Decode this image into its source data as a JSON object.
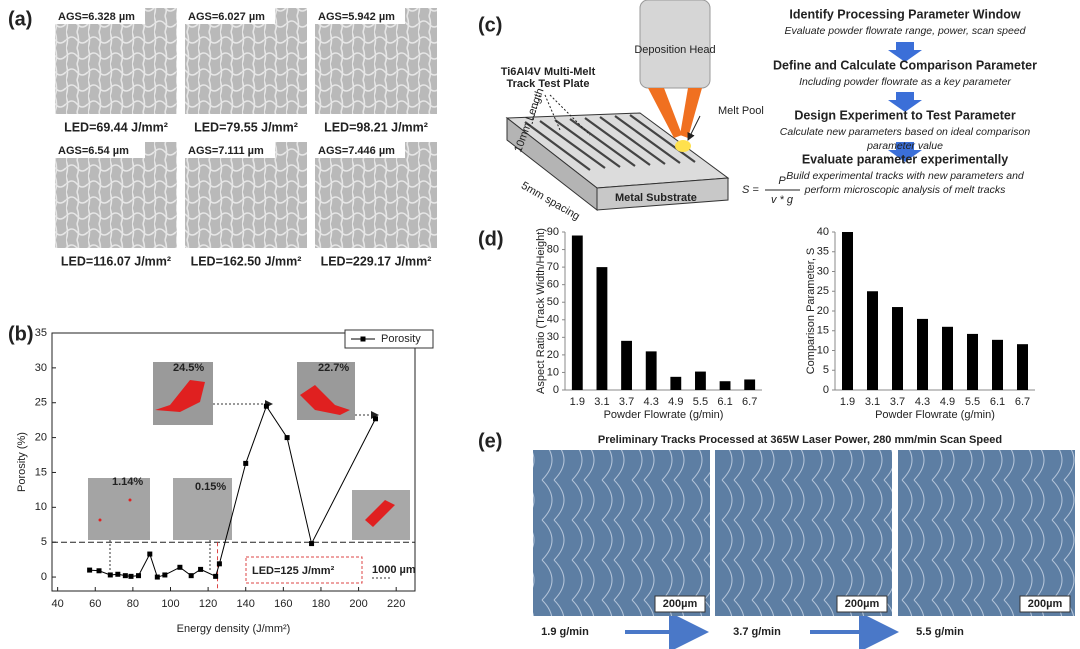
{
  "panels": {
    "labels": [
      "(a)",
      "(b)",
      "(c)",
      "(d)",
      "(e)"
    ],
    "a": {
      "images": [
        {
          "ags": "AGS=6.328 µm",
          "led": "LED=69.44 J/mm²"
        },
        {
          "ags": "AGS=6.027 µm",
          "led": "LED=79.55 J/mm²"
        },
        {
          "ags": "AGS=5.942 µm",
          "led": "LED=98.21 J/mm²"
        },
        {
          "ags": "AGS=6.54 µm",
          "led": "LED=116.07 J/mm²"
        },
        {
          "ags": "AGS=7.111 µm",
          "led": "LED=162.50 J/mm²"
        },
        {
          "ags": "AGS=7.446 µm",
          "led": "LED=229.17 J/mm²"
        }
      ]
    },
    "c": {
      "head": "Deposition Head",
      "plate": [
        "Ti6Al4V Multi-Melt",
        "Track Test Plate"
      ],
      "melt_pool": "Melt Pool",
      "substrate": "Metal Substrate",
      "length": "10mm Length",
      "spacing": "5mm spacing",
      "formula": {
        "lhs": "S =",
        "num": "P",
        "den": "v * g"
      },
      "steps": [
        {
          "title": "Identify Processing Parameter Window",
          "desc": [
            "Evaluate powder flowrate range, power, scan speed"
          ]
        },
        {
          "title": "Define and Calculate Comparison Parameter",
          "desc": [
            "Including powder flowrate as a key parameter"
          ]
        },
        {
          "title": "Design Experiment to Test Parameter",
          "desc": [
            "Calculate new parameters based on ideal comparison",
            "parameter value"
          ]
        },
        {
          "title": "Evaluate parameter experimentally",
          "desc": [
            "Build experimental tracks with new parameters and",
            "perform microscopic analysis of melt tracks"
          ]
        }
      ]
    },
    "e": {
      "title": "Preliminary Tracks Processed at 365W Laser Power, 280 mm/min Scan Speed",
      "scale_bar": "200µm",
      "flowrates": [
        "1.9 g/min",
        "3.7 g/min",
        "5.5 g/min"
      ]
    }
  },
  "chart_data": [
    {
      "type": "line",
      "xlabel": "Energy density (J/mm²)",
      "ylabel": "Porosity (%)",
      "x": [
        57,
        62,
        68,
        72,
        76,
        79,
        83,
        89,
        93,
        97,
        105,
        111,
        116,
        124,
        126,
        140,
        151,
        162,
        175,
        209
      ],
      "series": [
        {
          "name": "Porosity",
          "color": "#000000",
          "values": [
            1.0,
            0.9,
            0.3,
            0.4,
            0.2,
            0.1,
            0.2,
            3.3,
            0.0,
            0.3,
            1.4,
            0.2,
            1.1,
            0.1,
            1.9,
            16.3,
            24.5,
            20.0,
            4.8,
            22.7
          ]
        }
      ],
      "xlim": [
        37,
        230
      ],
      "ylim": [
        -2,
        35
      ],
      "xticks": [
        40,
        60,
        80,
        100,
        120,
        140,
        160,
        180,
        200,
        220
      ],
      "yticks": [
        0,
        5,
        10,
        15,
        20,
        25,
        30,
        35
      ],
      "legend": "upper right",
      "hlines": [
        5
      ],
      "vlines": [
        125
      ],
      "annotations": [
        "24.5%",
        "22.7%",
        "1.14%",
        "0.15%",
        "LED=125 J/mm²",
        "1000 µm"
      ]
    },
    {
      "type": "bar",
      "xlabel": "Powder Flowrate (g/min)",
      "ylabel": "Aspect Ratio (Track Width/Height)",
      "categories": [
        "1.9",
        "3.1",
        "3.7",
        "4.3",
        "4.9",
        "5.5",
        "6.1",
        "6.7"
      ],
      "values": [
        88,
        70,
        28,
        22,
        7.5,
        10.5,
        5,
        6
      ],
      "color": "#000000",
      "ylim": [
        0,
        90
      ],
      "yticks": [
        0,
        10,
        20,
        30,
        40,
        50,
        60,
        70,
        80,
        90
      ]
    },
    {
      "type": "bar",
      "xlabel": "Powder Flowrate (g/min)",
      "ylabel": "Comparison Parameter, S",
      "categories": [
        "1.9",
        "3.1",
        "3.7",
        "4.3",
        "4.9",
        "5.5",
        "6.1",
        "6.7"
      ],
      "values": [
        40,
        25,
        21,
        18,
        16,
        14.2,
        12.7,
        11.6
      ],
      "color": "#000000",
      "ylim": [
        0,
        40
      ],
      "yticks": [
        0,
        5,
        10,
        15,
        20,
        25,
        30,
        35,
        40
      ]
    }
  ]
}
